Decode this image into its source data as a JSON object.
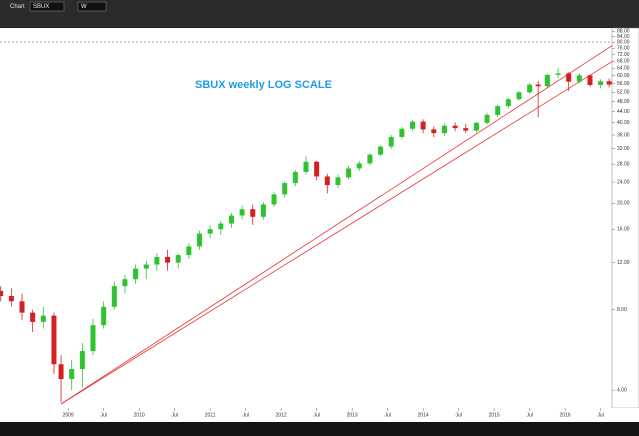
{
  "toolbar": {
    "title": "Chart",
    "symbol": "SBUX",
    "interval": "W"
  },
  "chart_data": {
    "type": "candlestick",
    "title": "SBUX weekly LOG SCALE",
    "log_scale": true,
    "up_color": "#2fc42f",
    "down_color": "#d42020",
    "x": [
      2008.05,
      2008.2,
      2008.35,
      2008.5,
      2008.65,
      2008.8,
      2008.9,
      2009.05,
      2009.2,
      2009.35,
      2009.5,
      2009.65,
      2009.8,
      2009.95,
      2010.1,
      2010.25,
      2010.4,
      2010.55,
      2010.7,
      2010.85,
      2011.0,
      2011.15,
      2011.3,
      2011.45,
      2011.6,
      2011.75,
      2011.9,
      2012.05,
      2012.2,
      2012.35,
      2012.5,
      2012.65,
      2012.8,
      2012.95,
      2013.1,
      2013.25,
      2013.4,
      2013.55,
      2013.7,
      2013.85,
      2014.0,
      2014.15,
      2014.3,
      2014.45,
      2014.6,
      2014.75,
      2014.9,
      2015.05,
      2015.2,
      2015.35,
      2015.5,
      2015.62,
      2015.75,
      2015.9,
      2016.05,
      2016.2,
      2016.35,
      2016.5,
      2016.62
    ],
    "open": [
      9.4,
      9.0,
      8.6,
      7.8,
      7.2,
      7.6,
      5.0,
      4.4,
      4.8,
      5.6,
      7.0,
      8.2,
      9.8,
      10.4,
      11.4,
      11.8,
      12.6,
      12.0,
      12.8,
      13.8,
      15.4,
      16.0,
      16.8,
      18.0,
      19.0,
      17.8,
      19.8,
      21.6,
      23.8,
      26.2,
      28.6,
      25.2,
      23.4,
      25.0,
      27.0,
      28.2,
      30.4,
      32.6,
      35.4,
      38.0,
      40.4,
      37.8,
      36.6,
      39.0,
      38.2,
      37.4,
      40.0,
      42.8,
      46.2,
      49.0,
      52.0,
      55.6,
      54.8,
      60.4,
      61.2,
      57.0,
      60.2,
      55.4,
      57.2
    ],
    "high": [
      9.8,
      9.6,
      9.2,
      8.0,
      8.2,
      7.8,
      5.4,
      5.2,
      6.0,
      7.4,
      8.6,
      10.2,
      10.8,
      11.8,
      12.2,
      13.0,
      13.4,
      13.0,
      14.2,
      15.8,
      16.6,
      17.2,
      18.4,
      19.6,
      19.8,
      20.2,
      22.0,
      24.2,
      26.6,
      30.0,
      28.8,
      25.8,
      25.6,
      27.6,
      28.8,
      30.8,
      32.8,
      36.0,
      38.6,
      41.0,
      41.2,
      38.8,
      39.8,
      40.2,
      39.6,
      40.4,
      43.6,
      46.8,
      49.6,
      52.6,
      56.4,
      57.4,
      61.2,
      64.0,
      61.8,
      61.4,
      60.6,
      58.2,
      58.6
    ],
    "low": [
      8.6,
      8.2,
      7.3,
      6.6,
      6.8,
      4.6,
      3.6,
      4.0,
      4.1,
      5.4,
      6.8,
      8.0,
      9.2,
      10.0,
      10.4,
      11.2,
      11.2,
      11.4,
      12.4,
      13.4,
      14.8,
      15.2,
      16.2,
      17.4,
      16.6,
      17.4,
      19.4,
      21.0,
      23.2,
      25.6,
      24.4,
      21.8,
      22.8,
      24.6,
      26.4,
      27.8,
      30.0,
      32.0,
      34.8,
      37.2,
      36.6,
      35.4,
      35.8,
      37.2,
      36.6,
      36.8,
      39.4,
      42.0,
      45.4,
      48.4,
      51.4,
      42.0,
      54.0,
      58.6,
      52.6,
      56.2,
      54.6,
      53.8,
      54.2
    ],
    "close": [
      9.0,
      8.6,
      7.8,
      7.2,
      7.6,
      5.0,
      4.4,
      4.8,
      5.6,
      7.0,
      8.2,
      9.8,
      10.4,
      11.4,
      11.8,
      12.6,
      12.0,
      12.8,
      13.8,
      15.4,
      16.0,
      16.8,
      18.0,
      19.0,
      17.8,
      19.8,
      21.6,
      23.8,
      26.2,
      28.6,
      25.2,
      23.4,
      25.0,
      27.0,
      28.2,
      30.4,
      32.6,
      35.4,
      38.0,
      40.4,
      37.8,
      36.6,
      39.0,
      38.2,
      37.4,
      40.0,
      42.8,
      46.2,
      49.0,
      52.0,
      55.6,
      54.8,
      60.4,
      61.2,
      57.0,
      60.2,
      55.4,
      57.2,
      55.6
    ],
    "trendlines": [
      {
        "color": "#e83232",
        "x": [
          2008.9,
          2016.66
        ],
        "y": [
          3.55,
          77.7
        ]
      },
      {
        "color": "#e83232",
        "x": [
          2008.9,
          2016.66
        ],
        "y": [
          3.55,
          67.8
        ]
      }
    ],
    "xlim": [
      2008.04,
      2016.66
    ],
    "xticks": [
      {
        "value": 2009,
        "label": "2009"
      },
      {
        "value": 2009.5,
        "label": "Jul"
      },
      {
        "value": 2010,
        "label": "2010"
      },
      {
        "value": 2010.5,
        "label": "Jul"
      },
      {
        "value": 2011,
        "label": "2011"
      },
      {
        "value": 2011.5,
        "label": "Jul"
      },
      {
        "value": 2012,
        "label": "2012"
      },
      {
        "value": 2012.5,
        "label": "Jul"
      },
      {
        "value": 2013,
        "label": "2013"
      },
      {
        "value": 2013.5,
        "label": "Jul"
      },
      {
        "value": 2014,
        "label": "2014"
      },
      {
        "value": 2014.5,
        "label": "Jul"
      },
      {
        "value": 2015,
        "label": "2015"
      },
      {
        "value": 2015.5,
        "label": "Jul"
      },
      {
        "value": 2016,
        "label": "2016"
      },
      {
        "value": 2016.5,
        "label": "Jul"
      }
    ],
    "ylim": [
      3.43,
      90.5
    ],
    "yticks": [
      {
        "value": 4,
        "label": "4.00"
      },
      {
        "value": 8,
        "label": "8.00"
      },
      {
        "value": 12,
        "label": "12.00"
      },
      {
        "value": 16,
        "label": "16.00"
      },
      {
        "value": 20,
        "label": "20.00"
      },
      {
        "value": 24,
        "label": "24.00"
      },
      {
        "value": 28,
        "label": "28.00"
      },
      {
        "value": 32,
        "label": "32.00"
      },
      {
        "value": 36,
        "label": "36.00"
      },
      {
        "value": 40,
        "label": "40.00"
      },
      {
        "value": 44,
        "label": "44.00"
      },
      {
        "value": 48,
        "label": "48.00"
      },
      {
        "value": 52,
        "label": "52.00"
      },
      {
        "value": 56,
        "label": "56.00"
      },
      {
        "value": 60,
        "label": "60.00"
      },
      {
        "value": 64,
        "label": "64.00"
      },
      {
        "value": 68,
        "label": "68.00"
      },
      {
        "value": 72,
        "label": "72.00"
      },
      {
        "value": 76,
        "label": "76.00"
      },
      {
        "value": 80,
        "label": "80.00"
      },
      {
        "value": 84,
        "label": "84.00"
      },
      {
        "value": 88,
        "label": "88.00"
      }
    ]
  }
}
